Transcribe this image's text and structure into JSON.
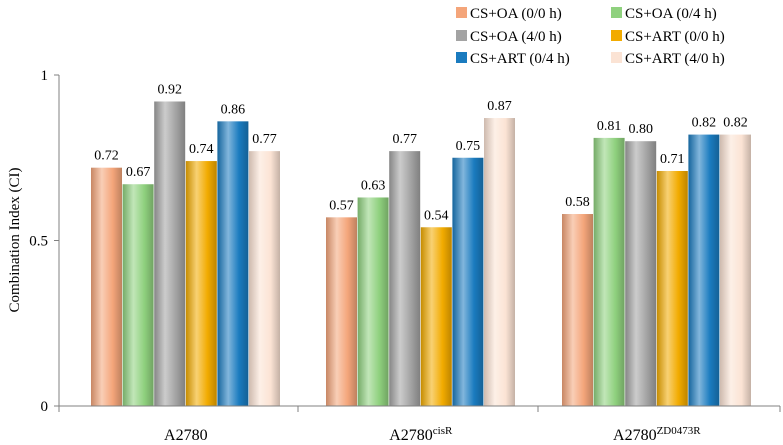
{
  "chart_data": {
    "type": "bar",
    "title": "",
    "xlabel": "",
    "ylabel": "Combination Index (CI)",
    "ylim": [
      0,
      1
    ],
    "yticks": [
      "0",
      "0.5",
      "1"
    ],
    "grid": false,
    "legend_position": "top-right",
    "categories": [
      {
        "base": "A2780",
        "sup": ""
      },
      {
        "base": "A2780",
        "sup": "cisR"
      },
      {
        "base": "A2780",
        "sup": "ZD0473R"
      }
    ],
    "series": [
      {
        "name": "CS+OA (0/0 h)",
        "color": "#f4a57a",
        "values": [
          0.72,
          0.57,
          0.58
        ],
        "labels": [
          "0.72",
          "0.57",
          "0.58"
        ]
      },
      {
        "name": "CS+OA (0/4 h)",
        "color": "#8fd17e",
        "values": [
          0.67,
          0.63,
          0.81
        ],
        "labels": [
          "0.67",
          "0.63",
          "0.81"
        ]
      },
      {
        "name": "CS+OA (4/0 h)",
        "color": "#a3a3a3",
        "values": [
          0.92,
          0.77,
          0.8
        ],
        "labels": [
          "0.92",
          "0.77",
          "0.80"
        ]
      },
      {
        "name": "CS+ART (0/0 h)",
        "color": "#f2ab00",
        "values": [
          0.74,
          0.54,
          0.71
        ],
        "labels": [
          "0.74",
          "0.54",
          "0.71"
        ]
      },
      {
        "name": "CS+ART (0/4 h)",
        "color": "#1a7bbf",
        "values": [
          0.86,
          0.75,
          0.82
        ],
        "labels": [
          "0.86",
          "0.75",
          "0.82"
        ]
      },
      {
        "name": "CS+ART (4/0 h)",
        "color": "#fbe3d4",
        "values": [
          0.77,
          0.87,
          0.82
        ],
        "labels": [
          "0.77",
          "0.87",
          "0.82"
        ]
      }
    ]
  }
}
